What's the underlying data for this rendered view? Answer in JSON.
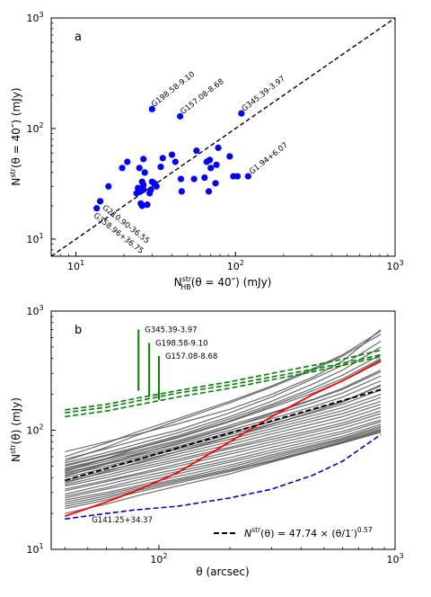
{
  "chart_data": [
    {
      "type": "scatter",
      "panel_label": "a",
      "xlabel": "N",
      "xlabel_sup": "str",
      "xlabel_sub": "HB",
      "xlabel_rest": "(θ = 40″) (mJy)",
      "ylabel": "N",
      "ylabel_sup": "str",
      "ylabel_rest": "(θ = 40″) (mJy)",
      "xscale": "log",
      "yscale": "log",
      "xlim": [
        7,
        1000
      ],
      "ylim": [
        7,
        1000
      ],
      "xticks": [
        {
          "v": 10,
          "b": "10",
          "e": "1"
        },
        {
          "v": 100,
          "b": "10",
          "e": "2"
        },
        {
          "v": 1000,
          "b": "10",
          "e": "3"
        }
      ],
      "yticks": [
        {
          "v": 10,
          "b": "10",
          "e": "1"
        },
        {
          "v": 100,
          "b": "10",
          "e": "2"
        },
        {
          "v": 1000,
          "b": "10",
          "e": "3"
        }
      ],
      "marker_color": "#0000ff",
      "line_color": "#000000",
      "one_to_one_line": true,
      "points": [
        [
          13.5,
          19
        ],
        [
          14.2,
          22
        ],
        [
          16,
          30
        ],
        [
          19.5,
          44
        ],
        [
          21,
          50
        ],
        [
          24,
          26
        ],
        [
          24.5,
          29
        ],
        [
          25,
          27
        ],
        [
          25,
          44
        ],
        [
          25.5,
          21
        ],
        [
          26,
          20
        ],
        [
          26,
          33
        ],
        [
          26.5,
          31
        ],
        [
          26.5,
          28
        ],
        [
          26.5,
          53
        ],
        [
          27,
          40
        ],
        [
          28,
          20.5
        ],
        [
          29,
          26
        ],
        [
          29.5,
          28
        ],
        [
          30,
          150
        ],
        [
          30,
          33
        ],
        [
          31,
          32
        ],
        [
          32,
          30
        ],
        [
          34,
          45
        ],
        [
          35,
          54
        ],
        [
          40,
          58
        ],
        [
          42,
          50
        ],
        [
          45,
          129
        ],
        [
          45.5,
          35
        ],
        [
          46,
          27
        ],
        [
          55,
          35
        ],
        [
          57,
          63
        ],
        [
          64,
          36
        ],
        [
          66,
          50
        ],
        [
          68,
          27
        ],
        [
          69,
          52
        ],
        [
          70,
          44
        ],
        [
          75,
          32
        ],
        [
          76,
          47
        ],
        [
          78,
          67
        ],
        [
          92,
          56
        ],
        [
          97,
          37
        ],
        [
          103,
          37
        ],
        [
          109,
          137
        ],
        [
          120,
          37
        ]
      ],
      "annotations": [
        {
          "text": "G198.58-9.10",
          "x": 30,
          "y": 150,
          "angle": -38,
          "dx": 2,
          "dy": -2,
          "anchor": "start"
        },
        {
          "text": "G157.08-8.68",
          "x": 45,
          "y": 129,
          "angle": -38,
          "dx": 3,
          "dy": -2,
          "anchor": "start"
        },
        {
          "text": "G345.39-3.97",
          "x": 109,
          "y": 137,
          "angle": -38,
          "dx": 3,
          "dy": -2,
          "anchor": "start"
        },
        {
          "text": "G1.94+6.07",
          "x": 120,
          "y": 37,
          "angle": -38,
          "dx": 4,
          "dy": -2,
          "anchor": "start"
        },
        {
          "text": "G210.90-36.55",
          "x": 14.2,
          "y": 22,
          "angle": 38,
          "dx": 2,
          "dy": 8,
          "anchor": "start"
        },
        {
          "text": "G358.96+36.75",
          "x": 13.5,
          "y": 19,
          "angle": 38,
          "dx": -4,
          "dy": 9,
          "anchor": "start"
        }
      ]
    },
    {
      "type": "line",
      "panel_label": "b",
      "xlabel": "θ (arcsec)",
      "ylabel": "N",
      "ylabel_sup": "str",
      "ylabel_rest": "(θ) (mJy)",
      "xscale": "log",
      "yscale": "log",
      "xlim": [
        35,
        1000
      ],
      "ylim": [
        10,
        1000
      ],
      "xticks": [
        {
          "v": 100,
          "b": "10",
          "e": "2"
        },
        {
          "v": 1000,
          "b": "10",
          "e": "3"
        }
      ],
      "yticks": [
        {
          "v": 10,
          "b": "10",
          "e": "1"
        },
        {
          "v": 100,
          "b": "10",
          "e": "2"
        },
        {
          "v": 1000,
          "b": "10",
          "e": "3"
        }
      ],
      "x": [
        40,
        60,
        80,
        120,
        200,
        300,
        450,
        600,
        870
      ],
      "legend_prefix": "N",
      "legend_sup": "str",
      "legend_text": "(θ) = 47.74 × (θ/1′)",
      "legend_exp": "0.57",
      "legend_position": "lower right",
      "fit": {
        "amp": 47.74,
        "index": 0.57,
        "color": "#000000"
      },
      "colors": {
        "gray": "#555555",
        "green": "#008000",
        "red": "#ff0000",
        "blue": "#0000cc"
      },
      "gray_series": [
        [
          66,
          80,
          92,
          113,
          150,
          200,
          280,
          380,
          700
        ],
        [
          57,
          70,
          82,
          100,
          140,
          190,
          270,
          350,
          560
        ],
        [
          53,
          65,
          76,
          95,
          130,
          175,
          245,
          320,
          500
        ],
        [
          51,
          62,
          72,
          90,
          125,
          165,
          225,
          290,
          430
        ],
        [
          50,
          61,
          70,
          86,
          118,
          155,
          205,
          260,
          390
        ],
        [
          48,
          58,
          67,
          82,
          110,
          140,
          182,
          225,
          320
        ],
        [
          47,
          57,
          65,
          80,
          106,
          133,
          170,
          205,
          285
        ],
        [
          46,
          55,
          63,
          76,
          100,
          125,
          158,
          190,
          260
        ],
        [
          44,
          53,
          61,
          73,
          96,
          118,
          148,
          175,
          235
        ],
        [
          43,
          52,
          59,
          71,
          92,
          113,
          140,
          165,
          218
        ],
        [
          42,
          50,
          57,
          69,
          88,
          108,
          133,
          155,
          200
        ],
        [
          40,
          48,
          55,
          66,
          84,
          103,
          126,
          146,
          188
        ],
        [
          38,
          46,
          52,
          63,
          80,
          98,
          120,
          138,
          175
        ],
        [
          37,
          44,
          50,
          60,
          76,
          93,
          113,
          130,
          165
        ],
        [
          35,
          42,
          48,
          57,
          72,
          88,
          106,
          122,
          155
        ],
        [
          34,
          40,
          46,
          55,
          70,
          84,
          100,
          115,
          145
        ],
        [
          32,
          38,
          43,
          52,
          66,
          80,
          96,
          110,
          138
        ],
        [
          31,
          37,
          42,
          50,
          63,
          76,
          91,
          104,
          130
        ],
        [
          29,
          35,
          40,
          47,
          59,
          72,
          86,
          98,
          122
        ],
        [
          28,
          33,
          38,
          45,
          56,
          68,
          82,
          94,
          118
        ],
        [
          27,
          32,
          36,
          43,
          54,
          65,
          78,
          89,
          112
        ],
        [
          26,
          30,
          34,
          41,
          51,
          62,
          75,
          86,
          108
        ],
        [
          25,
          29,
          33,
          39,
          49,
          60,
          73,
          84,
          105
        ],
        [
          24,
          28,
          32,
          38,
          47,
          58,
          71,
          82,
          102
        ],
        [
          23,
          27,
          31,
          37,
          46,
          56,
          69,
          80,
          100
        ],
        [
          22,
          26,
          30,
          36,
          45,
          55,
          68,
          79,
          98
        ],
        [
          20,
          24,
          28,
          34,
          43,
          54,
          67,
          78,
          96
        ],
        [
          55,
          72,
          90,
          120,
          170,
          230,
          320,
          420,
          640
        ],
        [
          60,
          78,
          96,
          125,
          175,
          235,
          330,
          430,
          680
        ],
        [
          45,
          58,
          70,
          88,
          120,
          160,
          215,
          270,
          400
        ],
        [
          41,
          52,
          62,
          78,
          105,
          138,
          180,
          220,
          310
        ],
        [
          36,
          45,
          53,
          66,
          88,
          112,
          143,
          172,
          240
        ]
      ],
      "green_series": [
        {
          "name": "G345.39-3.97",
          "values": [
            148,
            165,
            185,
            215,
            255,
            300,
            350,
            395,
            470
          ]
        },
        {
          "name": "G198.58-9.10",
          "values": [
            140,
            156,
            175,
            205,
            240,
            280,
            325,
            365,
            430
          ]
        },
        {
          "name": "G157.08-8.68",
          "values": [
            130,
            145,
            162,
            190,
            225,
            265,
            310,
            350,
            415
          ]
        }
      ],
      "red_series": [
        19,
        25,
        31,
        44,
        80,
        130,
        200,
        260,
        380
      ],
      "blue_series": {
        "name": "G141.25+34.37",
        "values": [
          18,
          20,
          21.5,
          23,
          27,
          32,
          42,
          55,
          92
        ]
      },
      "green_markers": [
        {
          "label": "G345.39-3.97",
          "x": 82,
          "y_low": 215,
          "y_high": 700
        },
        {
          "label": "G198.58-9.10",
          "x": 91,
          "y_low": 190,
          "y_high": 540
        },
        {
          "label": "G157.08-8.68",
          "x": 100,
          "y_low": 180,
          "y_high": 420
        }
      ],
      "blue_label": "G141.25+34.37"
    }
  ]
}
